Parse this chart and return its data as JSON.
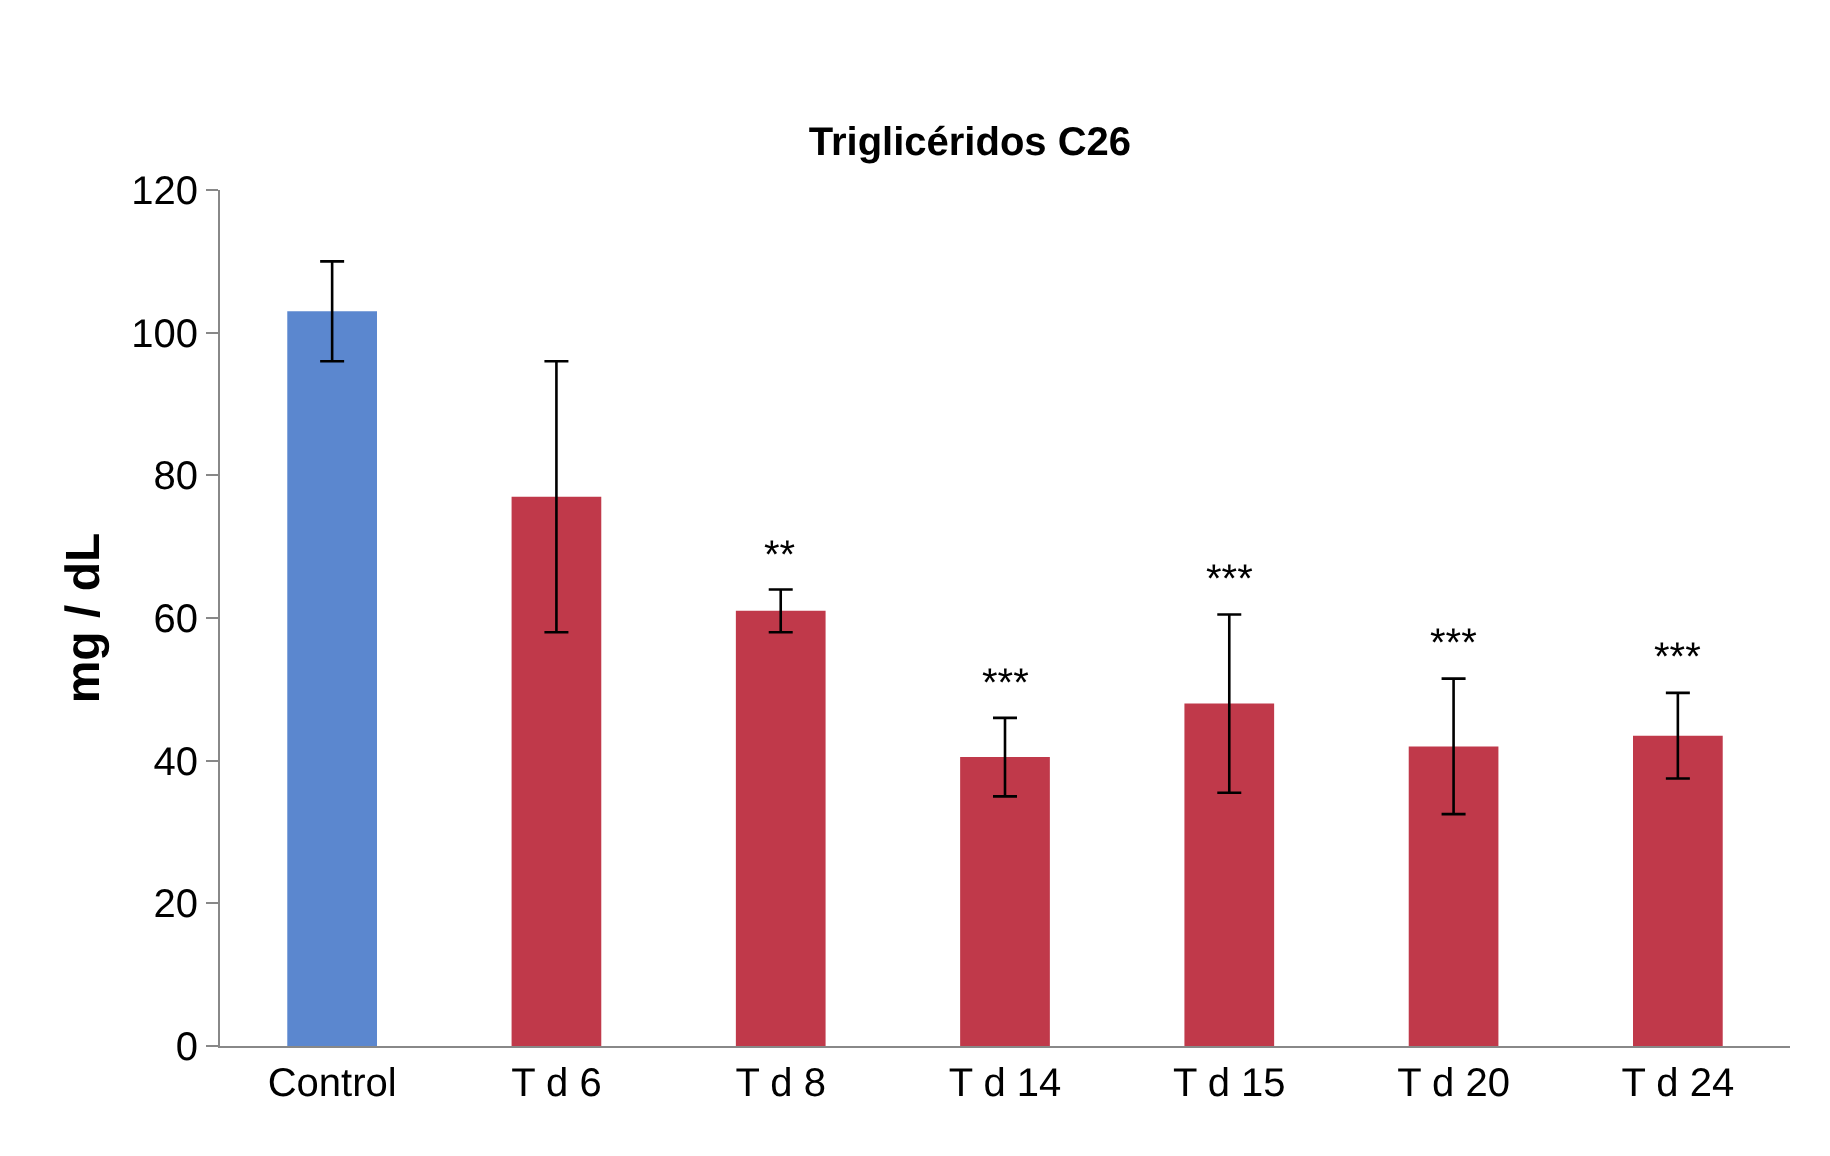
{
  "chart_data": {
    "type": "bar",
    "title": "Triglicéridos C26",
    "ylabel": "mg / dL",
    "categories": [
      "Control",
      "T d 6",
      "T d 8",
      "T d 14",
      "T d 15",
      "T d 20",
      "T d 24"
    ],
    "values": [
      103,
      77,
      61,
      40.5,
      48,
      42,
      43.5
    ],
    "colors": [
      "#5b87cf",
      "#c0394a",
      "#c0394a",
      "#c0394a",
      "#c0394a",
      "#c0394a",
      "#c0394a"
    ],
    "errors": [
      7,
      19,
      3,
      5.5,
      12.5,
      9.5,
      6
    ],
    "value_labels": [
      null,
      null,
      "**",
      "***",
      "***",
      "***",
      "***"
    ],
    "ylim": [
      0,
      120
    ],
    "yticks": [
      0,
      20,
      40,
      60,
      80,
      100,
      120
    ],
    "grid": false
  }
}
